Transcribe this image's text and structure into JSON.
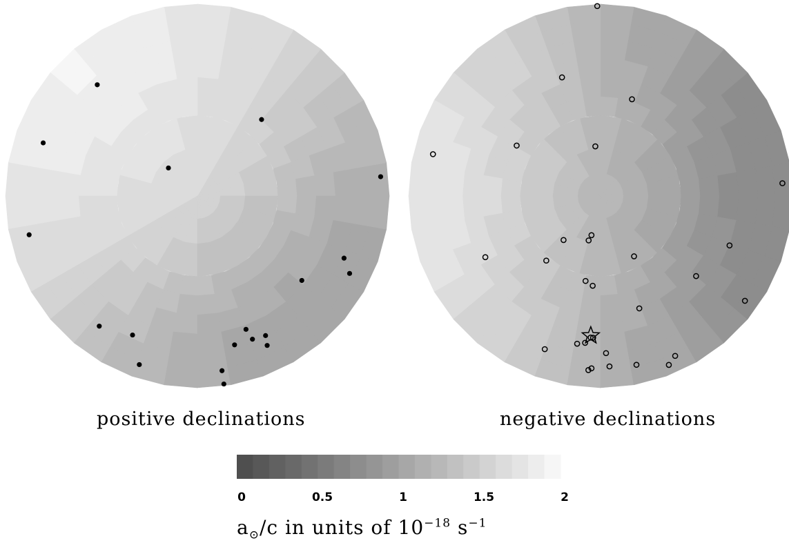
{
  "chart_data": [
    {
      "type": "heatmap",
      "projection": "polar",
      "panel_label": "positive declinations",
      "marker": "filled-circle",
      "colorbar_range": [
        0,
        2
      ],
      "field": {
        "bright_ra_deg": 135,
        "value_max": 1.9,
        "value_min": 1.0,
        "center_value": 1.6
      },
      "points": [
        {
          "ra": 132,
          "dist": 0.78
        },
        {
          "ra": 161,
          "dist": 0.85
        },
        {
          "ra": 136,
          "dist": 0.21
        },
        {
          "ra": 50,
          "dist": 0.52
        },
        {
          "ra": 6,
          "dist": 0.96
        },
        {
          "ra": 337,
          "dist": 0.83
        },
        {
          "ra": 333,
          "dist": 0.89
        },
        {
          "ra": 321,
          "dist": 0.7
        },
        {
          "ra": 291,
          "dist": 0.8
        },
        {
          "ra": 296,
          "dist": 0.81
        },
        {
          "ra": 284,
          "dist": 0.8
        },
        {
          "ra": 290,
          "dist": 0.74
        },
        {
          "ra": 295,
          "dist": 0.86
        },
        {
          "ra": 278,
          "dist": 0.92
        },
        {
          "ra": 278,
          "dist": 0.99
        },
        {
          "ra": 233,
          "dist": 0.85
        },
        {
          "ra": 245,
          "dist": 0.8
        },
        {
          "ra": 251,
          "dist": 0.93
        },
        {
          "ra": 193,
          "dist": 0.9
        }
      ]
    },
    {
      "type": "heatmap",
      "projection": "polar",
      "panel_label": "negative declinations",
      "marker": "open-circle",
      "special_marker": "star",
      "colorbar_range": [
        0,
        2
      ],
      "field": {
        "bright_ra_deg": 180,
        "value_max": 1.75,
        "value_min": 0.7,
        "center_value": 1.25
      },
      "points": [
        {
          "ra": 91,
          "dist": 0.99
        },
        {
          "ra": 108,
          "dist": 0.65
        },
        {
          "ra": 72,
          "dist": 0.53
        },
        {
          "ra": 96,
          "dist": 0.26
        },
        {
          "ra": 149,
          "dist": 0.51
        },
        {
          "ra": 166,
          "dist": 0.9
        },
        {
          "ra": 4,
          "dist": 0.95
        },
        {
          "ra": 230,
          "dist": 0.3
        },
        {
          "ra": 257,
          "dist": 0.21
        },
        {
          "ra": 255,
          "dist": 0.24
        },
        {
          "ra": 299,
          "dist": 0.36
        },
        {
          "ra": 320,
          "dist": 0.65
        },
        {
          "ra": 230,
          "dist": 0.44
        },
        {
          "ra": 260,
          "dist": 0.45
        },
        {
          "ra": 265,
          "dist": 0.47
        },
        {
          "ra": 208,
          "dist": 0.68
        },
        {
          "ra": 339,
          "dist": 0.72
        },
        {
          "ra": 324,
          "dist": 0.93
        },
        {
          "ra": 289,
          "dist": 0.62
        },
        {
          "ra": 266,
          "dist": 0.74
        },
        {
          "ra": 261,
          "dist": 0.78
        },
        {
          "ra": 267,
          "dist": 0.74
        },
        {
          "ra": 264,
          "dist": 0.77
        },
        {
          "ra": 250,
          "dist": 0.85
        },
        {
          "ra": 272,
          "dist": 0.82
        },
        {
          "ra": 273,
          "dist": 0.89
        },
        {
          "ra": 267,
          "dist": 0.9
        },
        {
          "ra": 266,
          "dist": 0.91
        },
        {
          "ra": 282,
          "dist": 0.9
        },
        {
          "ra": 295,
          "dist": 0.92
        },
        {
          "ra": 292,
          "dist": 0.95
        }
      ],
      "special_points": [
        {
          "ra": 266,
          "dist": 0.73
        }
      ]
    }
  ],
  "colorbar": {
    "min": 0,
    "max": 2,
    "steps": 20,
    "gray_dark": "#4f4f4f",
    "gray_light": "#f6f6f6",
    "ticks": [
      "0",
      "0.5",
      "1",
      "1.5",
      "2"
    ],
    "title_main": "a",
    "title_sub": "⊙",
    "title_mid": "/c in units of 10",
    "title_exp": "−18",
    "title_unit": " s",
    "title_unit_exp": "−1"
  }
}
